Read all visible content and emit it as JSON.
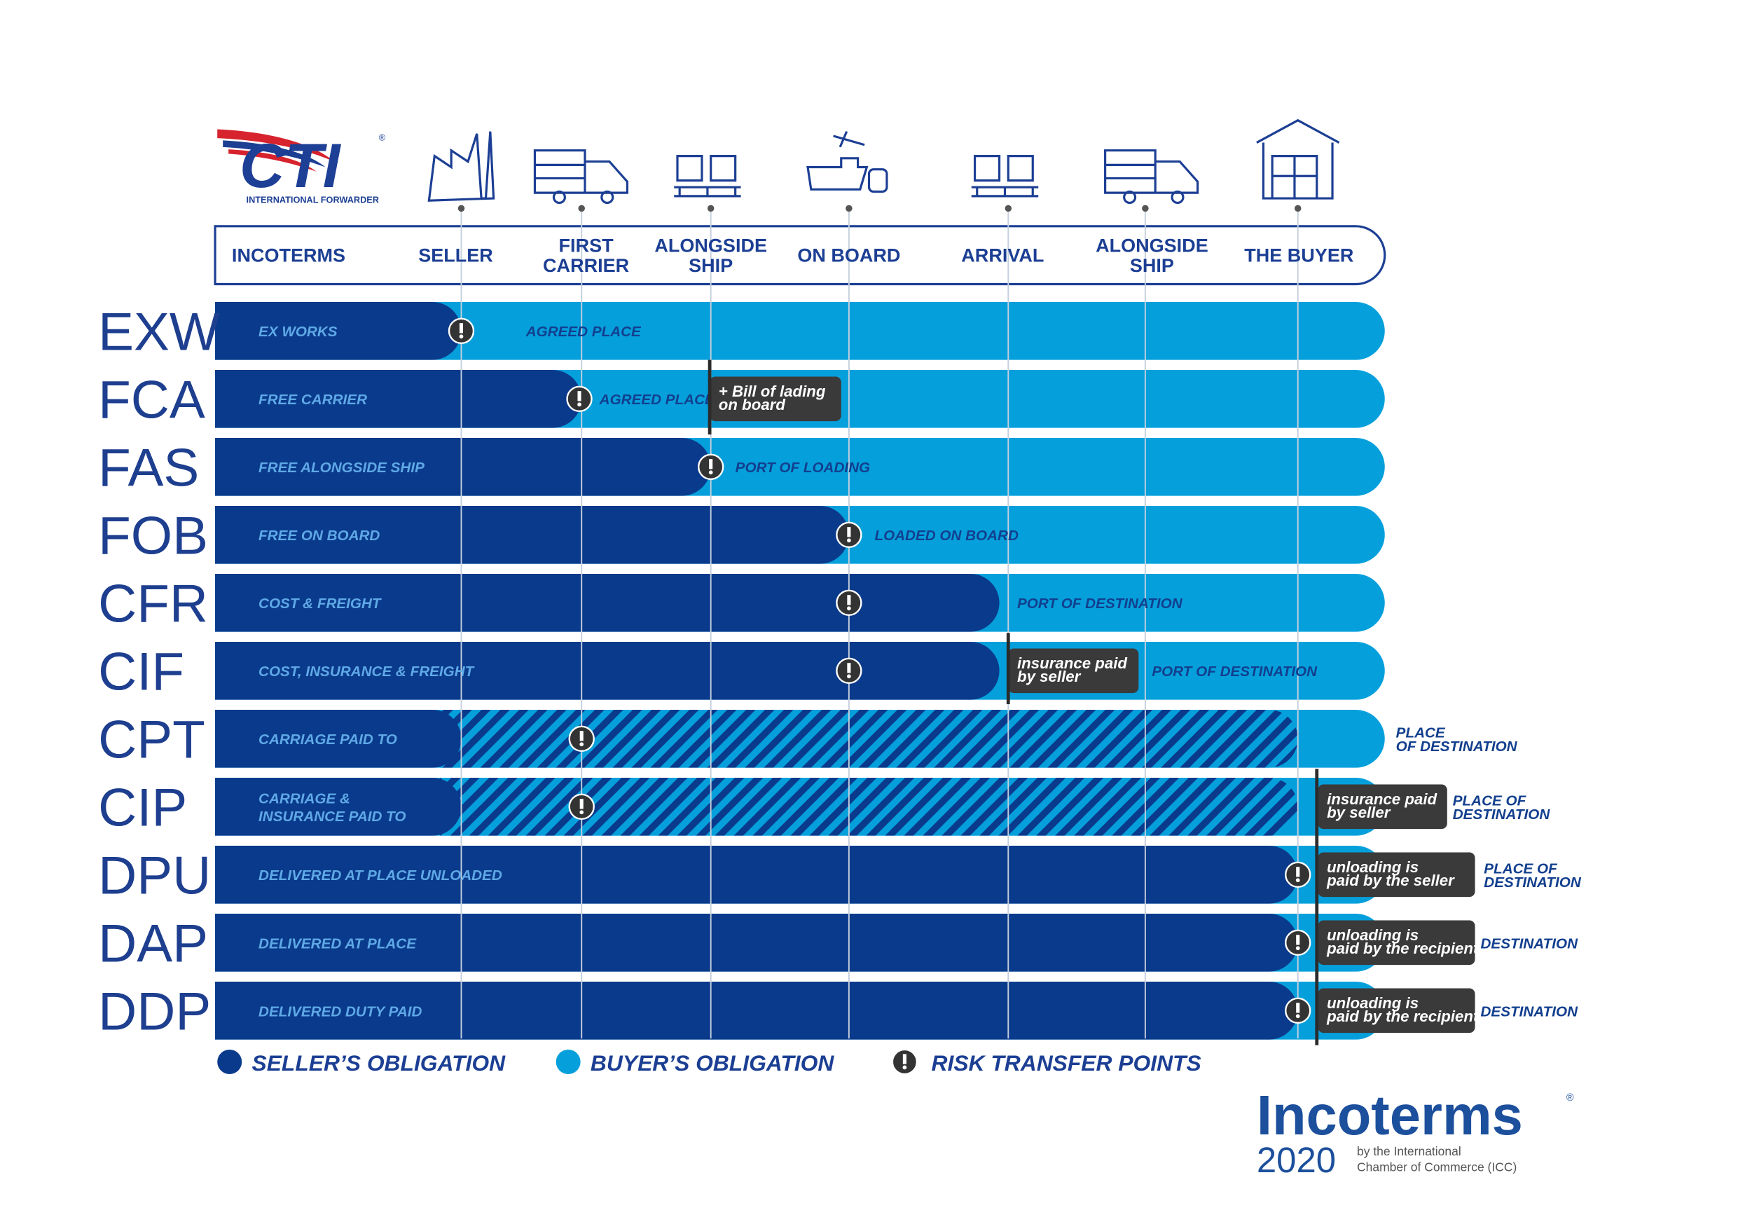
{
  "logo": {
    "name": "CTI",
    "mark": "®",
    "tagline": "INTERNATIONAL FORWARDER"
  },
  "header": {
    "columns": [
      [
        "INCOTERMS"
      ],
      [
        "SELLER"
      ],
      [
        "FIRST",
        "CARRIER"
      ],
      [
        "ALONGSIDE",
        "SHIP"
      ],
      [
        "ON BOARD"
      ],
      [
        "ARRIVAL"
      ],
      [
        "ALONGSIDE",
        "SHIP"
      ],
      [
        "THE BUYER"
      ]
    ]
  },
  "rows": [
    {
      "code": "EXW",
      "name": [
        "EX WORKS"
      ],
      "place": [
        "AGREED PLACE"
      ]
    },
    {
      "code": "FCA",
      "name": [
        "FREE CARRIER"
      ],
      "place": [
        "AGREED PLACE"
      ],
      "note": [
        "+ Bill of lading",
        "on board"
      ]
    },
    {
      "code": "FAS",
      "name": [
        "FREE ALONGSIDE SHIP"
      ],
      "place": [
        "PORT OF LOADING"
      ]
    },
    {
      "code": "FOB",
      "name": [
        "FREE ON BOARD"
      ],
      "place": [
        "LOADED ON BOARD"
      ]
    },
    {
      "code": "CFR",
      "name": [
        "COST & FREIGHT"
      ],
      "place": [
        "PORT OF DESTINATION"
      ]
    },
    {
      "code": "CIF",
      "name": [
        "COST, INSURANCE & FREIGHT"
      ],
      "place": [
        "PORT OF DESTINATION"
      ],
      "note": [
        "insurance paid",
        "by seller"
      ]
    },
    {
      "code": "CPT",
      "name": [
        "CARRIAGE PAID TO"
      ],
      "place": [
        "PLACE",
        "OF DESTINATION"
      ]
    },
    {
      "code": "CIP",
      "name": [
        "CARRIAGE &",
        "INSURANCE PAID TO"
      ],
      "place": [
        "PLACE OF",
        "DESTINATION"
      ],
      "note": [
        "insurance paid",
        "by seller"
      ]
    },
    {
      "code": "DPU",
      "name": [
        "DELIVERED AT PLACE UNLOADED"
      ],
      "place": [
        "PLACE OF",
        "DESTINATION"
      ],
      "note": [
        "unloading is",
        "paid by the seller"
      ]
    },
    {
      "code": "DAP",
      "name": [
        "DELIVERED AT PLACE"
      ],
      "place": [
        "DESTINATION"
      ],
      "note": [
        "unloading is",
        "paid by the recipient"
      ]
    },
    {
      "code": "DDP",
      "name": [
        "DELIVERED DUTY PAID"
      ],
      "place": [
        "DESTINATION"
      ],
      "note": [
        "unloading is",
        "paid by the recipient"
      ]
    }
  ],
  "legend": [
    "SELLER’S OBLIGATION",
    "BUYER’S OBLIGATION",
    "RISK TRANSFER POINTS"
  ],
  "footer_logo": {
    "name": "Incoterms",
    "mark": "®",
    "year": "2020",
    "byline": [
      "by the International",
      "Chamber of Commerce (ICC)"
    ]
  }
}
